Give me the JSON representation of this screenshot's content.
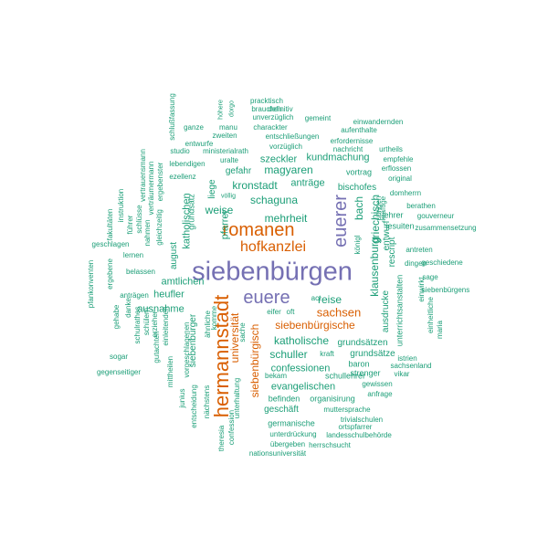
{
  "palette": {
    "green": "#1b9e77",
    "orange": "#d95f02",
    "purple": "#7570b3"
  },
  "words": [
    {
      "text": "siebenbürgen",
      "color": "purple"
    },
    {
      "text": "hermannstadt",
      "color": "orange"
    },
    {
      "text": "romanen",
      "color": "orange"
    },
    {
      "text": "euerer",
      "color": "purple"
    },
    {
      "text": "euere",
      "color": "purple"
    },
    {
      "text": "hofkanzlei",
      "color": "orange"
    },
    {
      "text": "sachsen",
      "color": "orange"
    },
    {
      "text": "siebenbürgische",
      "color": "orange"
    },
    {
      "text": "siebenbürgisch",
      "color": "orange"
    },
    {
      "text": "universität",
      "color": "orange"
    },
    {
      "text": "klausenburg",
      "color": "green"
    },
    {
      "text": "schaguna",
      "color": "green"
    },
    {
      "text": "katholische",
      "color": "green"
    },
    {
      "text": "reise",
      "color": "green"
    },
    {
      "text": "magyaren",
      "color": "green"
    },
    {
      "text": "kronstadt",
      "color": "green"
    },
    {
      "text": "mehrheit",
      "color": "green"
    },
    {
      "text": "weise",
      "color": "green"
    },
    {
      "text": "katholischen",
      "color": "green"
    },
    {
      "text": "anträge",
      "color": "green"
    },
    {
      "text": "bach",
      "color": "green"
    },
    {
      "text": "griechisch",
      "color": "green"
    },
    {
      "text": "heufler",
      "color": "green"
    },
    {
      "text": "schuller",
      "color": "green"
    },
    {
      "text": "confessionen",
      "color": "green"
    },
    {
      "text": "pfarrer",
      "color": "green"
    },
    {
      "text": "kundmachung",
      "color": "green"
    },
    {
      "text": "szeckler",
      "color": "green"
    },
    {
      "text": "gefahr",
      "color": "green"
    },
    {
      "text": "vortrag",
      "color": "green"
    },
    {
      "text": "bischofes",
      "color": "green"
    },
    {
      "text": "amtlichen",
      "color": "green"
    },
    {
      "text": "ausnahme",
      "color": "green"
    },
    {
      "text": "august",
      "color": "green"
    },
    {
      "text": "liege",
      "color": "green"
    },
    {
      "text": "evangelischen",
      "color": "green"
    },
    {
      "text": "grundsätzen",
      "color": "green"
    },
    {
      "text": "grundsätze",
      "color": "green"
    },
    {
      "text": "ausdrucke",
      "color": "green"
    },
    {
      "text": "rescript",
      "color": "green"
    },
    {
      "text": "entwurf",
      "color": "green"
    },
    {
      "text": "jesuiten",
      "color": "green"
    },
    {
      "text": "siebenbürger",
      "color": "green"
    },
    {
      "text": "schullehrer",
      "color": "green"
    },
    {
      "text": "grundsatz",
      "color": "green"
    },
    {
      "text": "geschäft",
      "color": "green"
    },
    {
      "text": "germanische",
      "color": "green"
    },
    {
      "text": "organisirung",
      "color": "green"
    },
    {
      "text": "befinden",
      "color": "green"
    },
    {
      "text": "bekam",
      "color": "green"
    },
    {
      "text": "baron",
      "color": "green"
    },
    {
      "text": "strenger",
      "color": "green"
    },
    {
      "text": "anfrage",
      "color": "green"
    },
    {
      "text": "gewissen",
      "color": "green"
    },
    {
      "text": "istrien",
      "color": "green"
    },
    {
      "text": "vikar",
      "color": "green"
    },
    {
      "text": "sachsenland",
      "color": "green"
    },
    {
      "text": "unterrichtsanstalten",
      "color": "green"
    },
    {
      "text": "kräftige",
      "color": "green"
    },
    {
      "text": "übrigen",
      "color": "green"
    },
    {
      "text": "lehrer",
      "color": "green"
    },
    {
      "text": "gouverneur",
      "color": "green"
    },
    {
      "text": "zusammensetzung",
      "color": "green"
    },
    {
      "text": "berathen",
      "color": "green"
    },
    {
      "text": "antreten",
      "color": "green"
    },
    {
      "text": "geschiedene",
      "color": "green"
    },
    {
      "text": "sage",
      "color": "green"
    },
    {
      "text": "siebenbürgens",
      "color": "green"
    },
    {
      "text": "einwandernden",
      "color": "green"
    },
    {
      "text": "einheitliche",
      "color": "green"
    },
    {
      "text": "maria",
      "color": "green"
    },
    {
      "text": "einwirkt",
      "color": "green"
    },
    {
      "text": "domherrn",
      "color": "green"
    },
    {
      "text": "original",
      "color": "green"
    },
    {
      "text": "dingen",
      "color": "green"
    },
    {
      "text": "erflossen",
      "color": "green"
    },
    {
      "text": "empfehle",
      "color": "green"
    },
    {
      "text": "urtheils",
      "color": "green"
    },
    {
      "text": "nachricht",
      "color": "green"
    },
    {
      "text": "erfordernisse",
      "color": "green"
    },
    {
      "text": "aufenthalte",
      "color": "green"
    },
    {
      "text": "gemeint",
      "color": "green"
    },
    {
      "text": "definitiv",
      "color": "green"
    },
    {
      "text": "pracktisch",
      "color": "green"
    },
    {
      "text": "brauchen",
      "color": "green"
    },
    {
      "text": "unverzüglich",
      "color": "green"
    },
    {
      "text": "charackter",
      "color": "green"
    },
    {
      "text": "entschließungen",
      "color": "green"
    },
    {
      "text": "vorzüglich",
      "color": "green"
    },
    {
      "text": "zweiten",
      "color": "green"
    },
    {
      "text": "manu",
      "color": "green"
    },
    {
      "text": "ganze",
      "color": "green"
    },
    {
      "text": "höhere",
      "color": "green"
    },
    {
      "text": "dorgo",
      "color": "green"
    },
    {
      "text": "entwurfe",
      "color": "green"
    },
    {
      "text": "ministerialrath",
      "color": "green"
    },
    {
      "text": "studio",
      "color": "green"
    },
    {
      "text": "lebendigen",
      "color": "green"
    },
    {
      "text": "uralte",
      "color": "green"
    },
    {
      "text": "ezellenz",
      "color": "green"
    },
    {
      "text": "völlig",
      "color": "green"
    },
    {
      "text": "schlußfassung",
      "color": "green"
    },
    {
      "text": "vertrauensmann",
      "color": "green"
    },
    {
      "text": "verträumermann",
      "color": "green"
    },
    {
      "text": "ergebenster",
      "color": "green"
    },
    {
      "text": "gleichzeitig",
      "color": "green"
    },
    {
      "text": "instruktion",
      "color": "green"
    },
    {
      "text": "führer",
      "color": "green"
    },
    {
      "text": "schlüsse",
      "color": "green"
    },
    {
      "text": "nahmen",
      "color": "green"
    },
    {
      "text": "fakultäten",
      "color": "green"
    },
    {
      "text": "geschlagen",
      "color": "green"
    },
    {
      "text": "lernen",
      "color": "green"
    },
    {
      "text": "belassen",
      "color": "green"
    },
    {
      "text": "anträgen",
      "color": "green"
    },
    {
      "text": "ergebene",
      "color": "green"
    },
    {
      "text": "pfankonventen",
      "color": "green"
    },
    {
      "text": "gehabe",
      "color": "green"
    },
    {
      "text": "danke",
      "color": "green"
    },
    {
      "text": "schulrathes",
      "color": "green"
    },
    {
      "text": "schülern",
      "color": "green"
    },
    {
      "text": "gutachten",
      "color": "green"
    },
    {
      "text": "sogar",
      "color": "green"
    },
    {
      "text": "gegenseitiger",
      "color": "green"
    },
    {
      "text": "erzieher",
      "color": "green"
    },
    {
      "text": "einleitenden",
      "color": "green"
    },
    {
      "text": "mittheilen",
      "color": "green"
    },
    {
      "text": "junius",
      "color": "green"
    },
    {
      "text": "vorgeschlagenen",
      "color": "green"
    },
    {
      "text": "entscheidung",
      "color": "green"
    },
    {
      "text": "nächstens",
      "color": "green"
    },
    {
      "text": "ähnliche",
      "color": "green"
    },
    {
      "text": "komme",
      "color": "green"
    },
    {
      "text": "unterhaltung",
      "color": "green"
    },
    {
      "text": "theresia",
      "color": "green"
    },
    {
      "text": "confession",
      "color": "green"
    },
    {
      "text": "sache",
      "color": "green"
    },
    {
      "text": "eifer",
      "color": "green"
    },
    {
      "text": "oft",
      "color": "green"
    },
    {
      "text": "act",
      "color": "green"
    },
    {
      "text": "kraft",
      "color": "green"
    },
    {
      "text": "königl",
      "color": "green"
    },
    {
      "text": "muttersprache",
      "color": "green"
    },
    {
      "text": "trivialschulen",
      "color": "green"
    },
    {
      "text": "ortspfarrer",
      "color": "green"
    },
    {
      "text": "unterdrückung",
      "color": "green"
    },
    {
      "text": "landesschulbehörde",
      "color": "green"
    },
    {
      "text": "übergeben",
      "color": "green"
    },
    {
      "text": "herrschsucht",
      "color": "green"
    },
    {
      "text": "nationsuniversität",
      "color": "green"
    }
  ]
}
